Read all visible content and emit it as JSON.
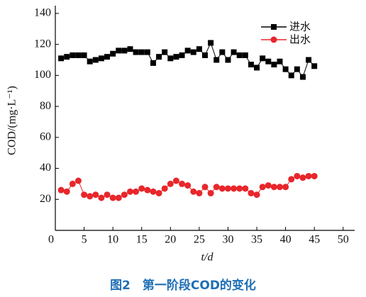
{
  "chart_data": {
    "type": "line",
    "caption": "图2　第一阶段COD的变化",
    "xlabel": "t/d",
    "ylabel": "COD/(mg·L⁻¹)",
    "x": [
      1,
      2,
      3,
      4,
      5,
      6,
      7,
      8,
      9,
      10,
      11,
      12,
      13,
      14,
      15,
      16,
      17,
      18,
      19,
      20,
      21,
      22,
      23,
      24,
      25,
      26,
      27,
      28,
      29,
      30,
      31,
      32,
      33,
      34,
      35,
      36,
      37,
      38,
      39,
      40,
      41,
      42,
      43,
      44,
      45
    ],
    "series": [
      {
        "name": "进水",
        "color": "#000000",
        "marker": "square",
        "values": [
          111,
          112,
          113,
          113,
          113,
          109,
          110,
          111,
          112,
          114,
          116,
          116,
          117,
          115,
          115,
          115,
          108,
          112,
          115,
          111,
          112,
          113,
          116,
          115,
          117,
          113,
          121,
          110,
          115,
          110,
          115,
          113,
          113,
          107,
          105,
          111,
          109,
          107,
          109,
          104,
          100,
          104,
          99,
          110,
          106
        ]
      },
      {
        "name": "出水",
        "color": "#e8262b",
        "marker": "circle",
        "values": [
          26,
          25,
          30,
          32,
          23,
          22,
          23,
          21,
          23,
          21,
          21,
          23,
          25,
          25,
          27,
          26,
          25,
          24,
          27,
          30,
          32,
          30,
          29,
          25,
          24,
          28,
          24,
          28,
          27,
          27,
          27,
          27,
          27,
          24,
          23,
          28,
          29,
          28,
          28,
          28,
          33,
          35,
          34,
          35,
          35
        ]
      }
    ],
    "xlim": [
      0,
      52
    ],
    "xticks": [
      0,
      5,
      10,
      15,
      20,
      25,
      30,
      35,
      40,
      45,
      50
    ],
    "ylim": [
      0,
      145
    ],
    "yticks": [
      20,
      40,
      60,
      80,
      100,
      120,
      140
    ],
    "legend": "upper right"
  }
}
